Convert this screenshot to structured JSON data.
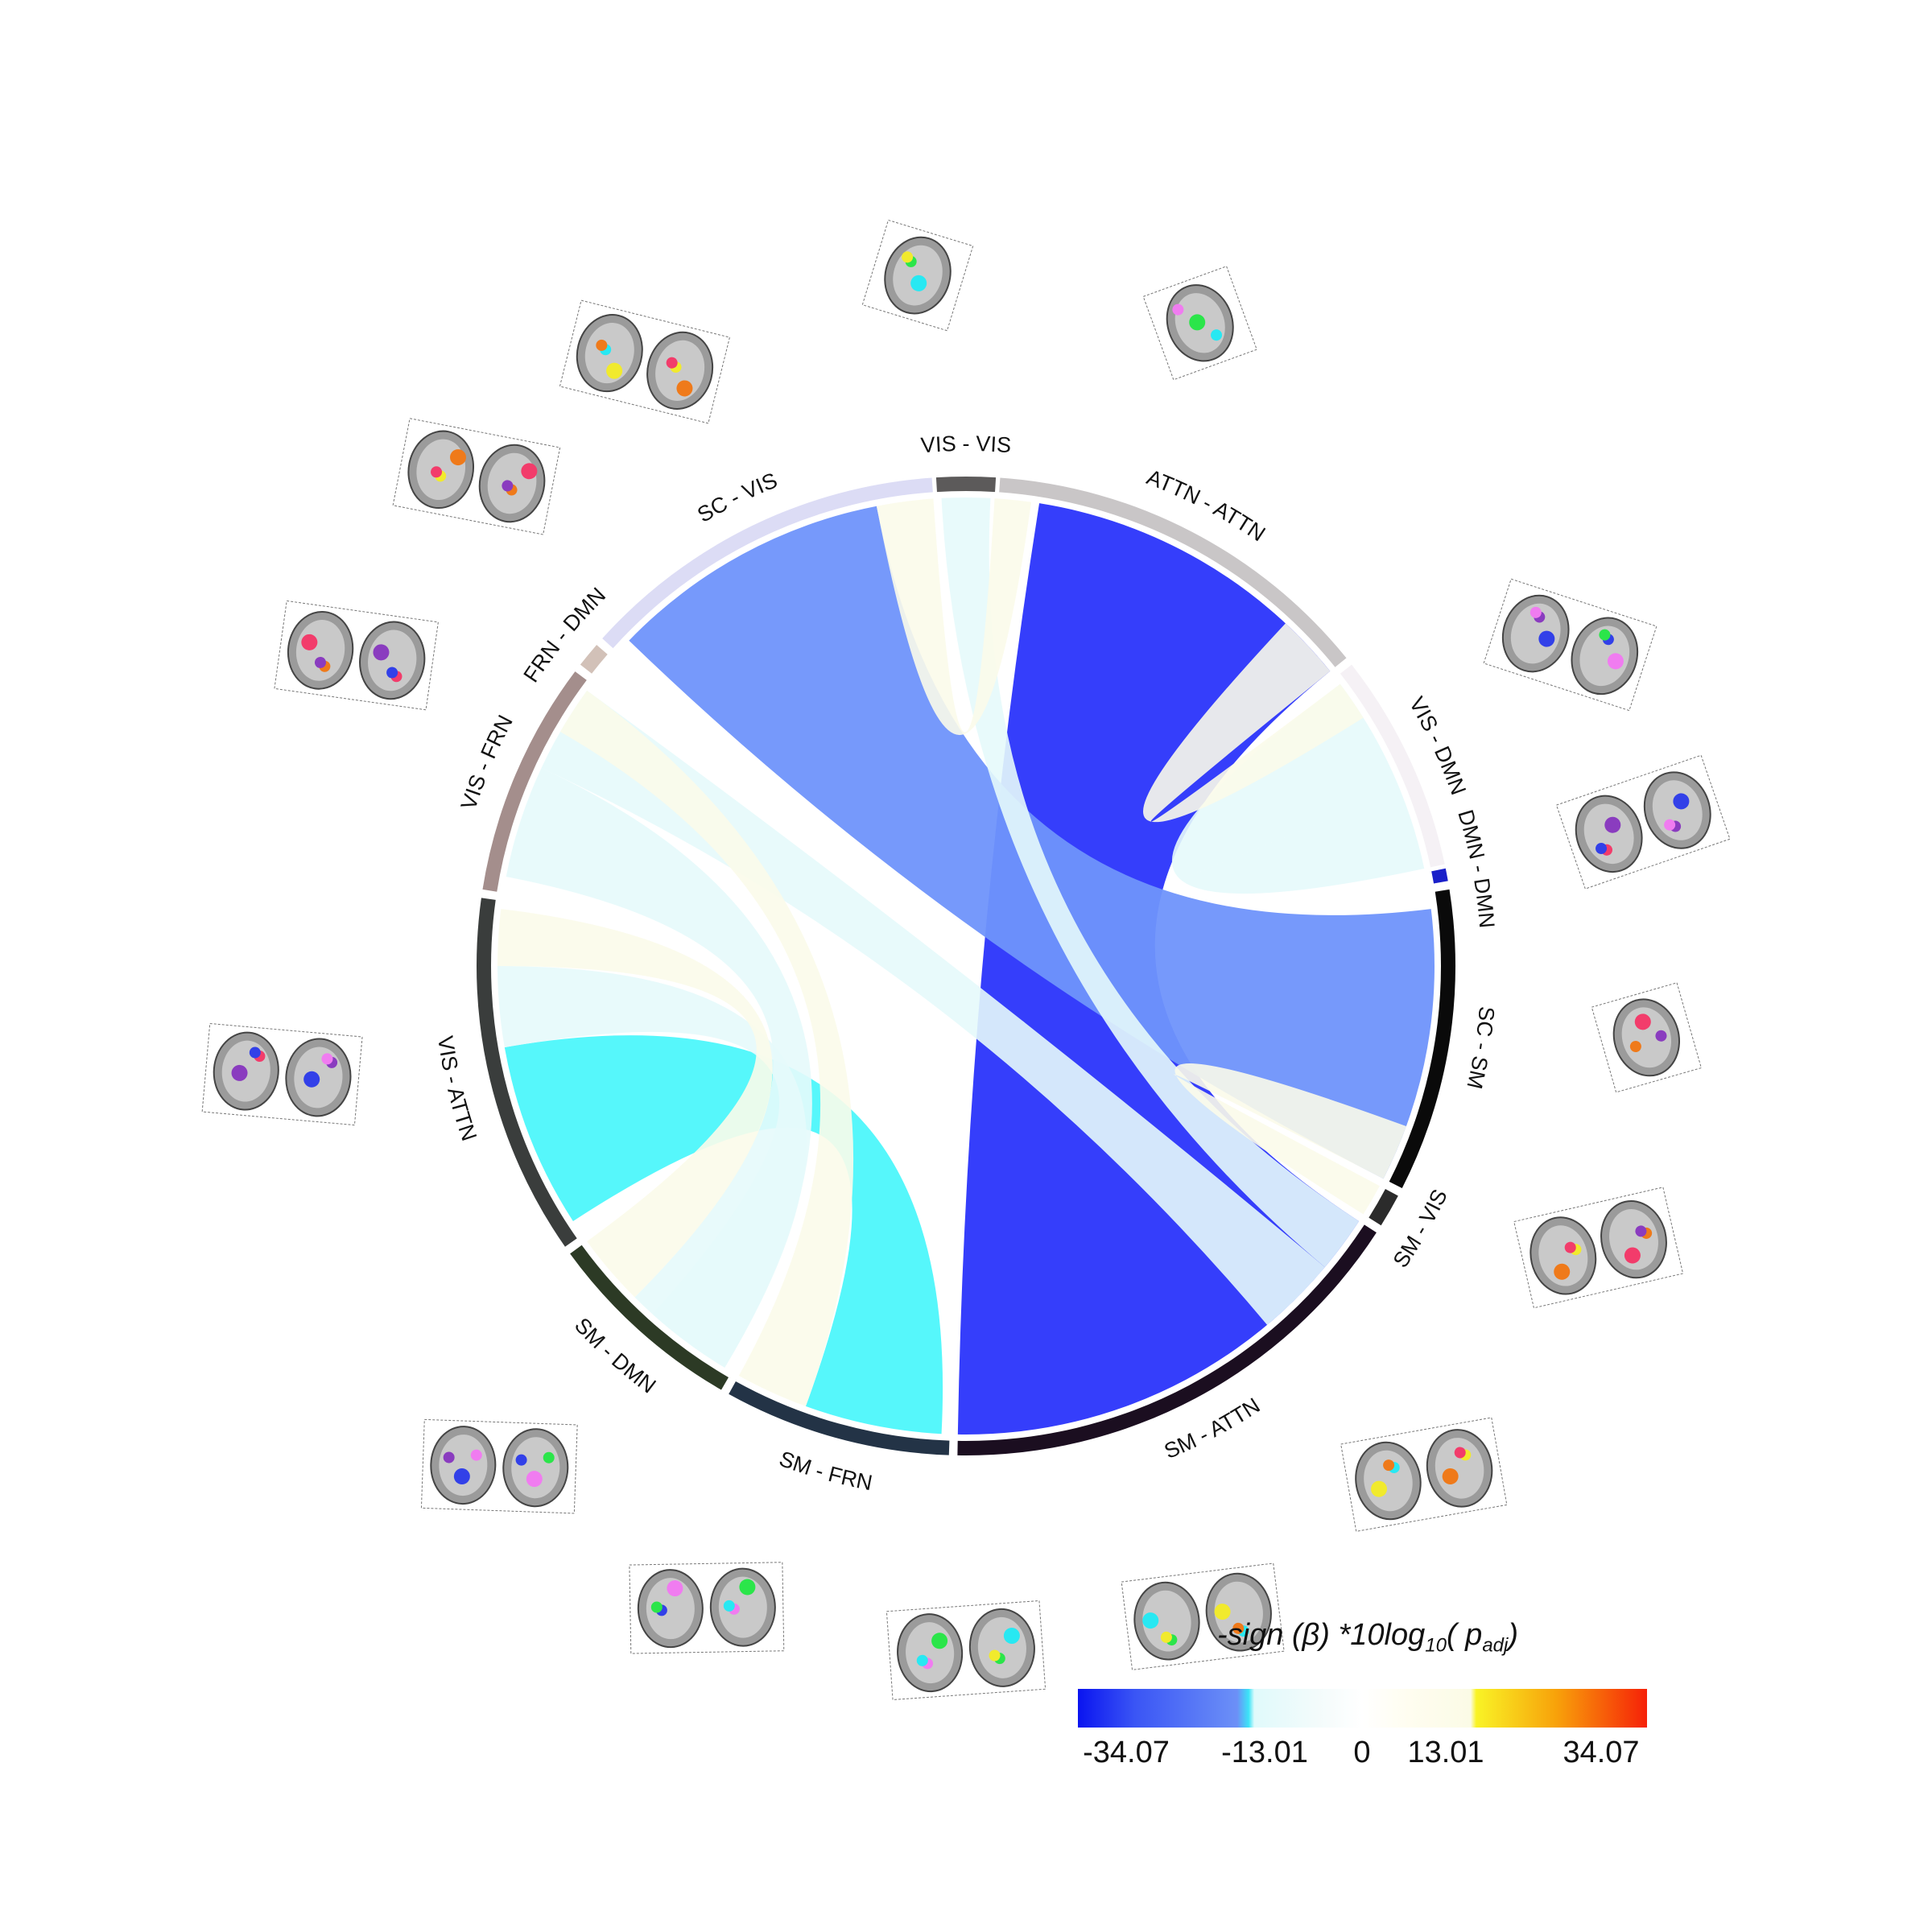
{
  "colors": {
    "ATTN - ATTN": "#c9c6c7",
    "VIS - DMN": "#f5f1f5",
    "DMN - DMN": "#1a20c9",
    "SC - SM": "#0a0a0a",
    "SM - VIS": "#2b2b2b",
    "SM - ATTN": "#1b0e20",
    "SM - FRN": "#233346",
    "SM - DMN": "#2c3a25",
    "VIS - ATTN": "#3a3d3c",
    "VIS - FRN": "#a48e8c",
    "FRN - DMN": "#d2c1b8",
    "SC - VIS": "#dcdcf5",
    "VIS - VIS": "#5c5a5a"
  },
  "segments": [
    {
      "label": "ATTN - ATTN"
    },
    {
      "label": "VIS - DMN"
    },
    {
      "label": "DMN - DMN"
    },
    {
      "label": "SC - SM"
    },
    {
      "label": "SM - VIS"
    },
    {
      "label": "SM - ATTN"
    },
    {
      "label": "SM - FRN"
    },
    {
      "label": "SM - DMN"
    },
    {
      "label": "VIS - ATTN"
    },
    {
      "label": "VIS - FRN"
    },
    {
      "label": "FRN - DMN"
    },
    {
      "label": "SC - VIS"
    },
    {
      "label": "VIS - VIS"
    }
  ],
  "chords": [
    {
      "from": "ATTN - ATTN",
      "to": "SM - ATTN",
      "value": -34.07,
      "color": "#2a34fb"
    },
    {
      "from": "SC - VIS",
      "to": "SC - SM",
      "value": -20,
      "color": "#6f94fb"
    },
    {
      "from": "VIS - ATTN",
      "to": "SM - FRN",
      "value": -13.01,
      "color": "#4df7fb"
    },
    {
      "from": "VIS - VIS",
      "to": "SM - ATTN",
      "value": -4,
      "color": "#e6fafb"
    },
    {
      "from": "VIS - DMN",
      "to": "DMN - DMN",
      "value": -4,
      "color": "#e6fafb"
    },
    {
      "from": "VIS - FRN",
      "to": "SM - DMN",
      "value": -4,
      "color": "#e6fafb"
    },
    {
      "from": "VIS - ATTN",
      "to": "SM - DMN",
      "value": -4,
      "color": "#e6fafb"
    },
    {
      "from": "VIS - FRN",
      "to": "SM - ATTN",
      "value": -4,
      "color": "#e6fafb"
    },
    {
      "from": "VIS - VIS",
      "to": "SC - VIS",
      "value": 3,
      "color": "#fbfbea"
    },
    {
      "from": "VIS - DMN",
      "to": "ATTN - ATTN",
      "value": 3,
      "color": "#fbfbea"
    },
    {
      "from": "VIS - FRN",
      "to": "SM - FRN",
      "value": 3,
      "color": "#fbfbea"
    },
    {
      "from": "VIS - ATTN",
      "to": "SM - FRN",
      "value": 3,
      "color": "#fbfbea"
    },
    {
      "from": "SM - VIS",
      "to": "SC - SM",
      "value": 3,
      "color": "#fbfbea"
    }
  ],
  "colorbar": {
    "title_main": "-sign (β) *10log",
    "title_sub": "10",
    "title_arg": "( p",
    "title_arg_sub": "adj",
    "title_close": ")",
    "ticks": [
      "-34.07",
      "-13.01",
      "0",
      "13.01",
      "34.07"
    ],
    "min": -40,
    "max": 40
  }
}
